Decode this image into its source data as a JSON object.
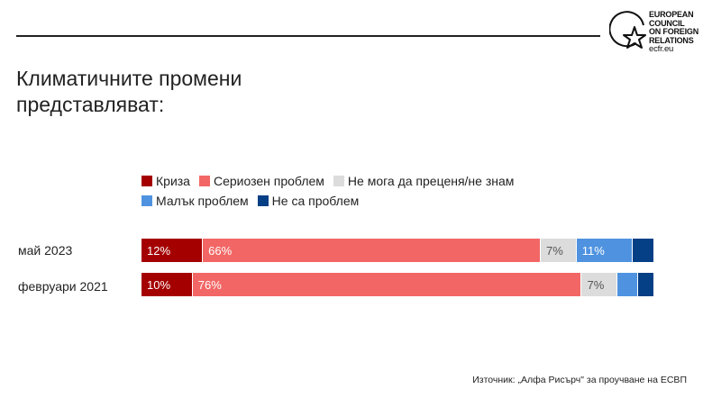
{
  "title": "Климатичните промени представляват:",
  "logo": {
    "lines": [
      "EUROPEAN",
      "COUNCIL",
      "ON FOREIGN",
      "RELATIONS"
    ],
    "url": "ecfr.eu"
  },
  "source": "Източник: „Алфа Рисърч\" за проучване на ЕСВП",
  "chart_data": {
    "type": "bar",
    "orientation": "horizontal",
    "stacked": true,
    "title": "Климатичните промени представляват:",
    "legend_position": "top",
    "categories": [
      "май 2023",
      "февруари 2021"
    ],
    "series": [
      {
        "name": "Криза",
        "color": "#a50000",
        "label_color": "#ffffff",
        "values": [
          12,
          10
        ],
        "labels": [
          "12%",
          "10%"
        ]
      },
      {
        "name": "Сериозен проблем",
        "color": "#f26765",
        "label_color": "#ffffff",
        "values": [
          66,
          76
        ],
        "labels": [
          "66%",
          "76%"
        ]
      },
      {
        "name": "Не мога да преценя/не знам",
        "color": "#dcdcdc",
        "label_color": "#555555",
        "values": [
          7,
          7
        ],
        "labels": [
          "7%",
          "7%"
        ]
      },
      {
        "name": "Малък проблем",
        "color": "#4f93e0",
        "label_color": "#ffffff",
        "values": [
          11,
          4
        ],
        "labels": [
          "11%",
          ""
        ]
      },
      {
        "name": "Не са проблем",
        "color": "#053f85",
        "label_color": "#ffffff",
        "values": [
          4,
          3
        ],
        "labels": [
          "",
          ""
        ]
      }
    ],
    "xlim": [
      0,
      100
    ]
  }
}
